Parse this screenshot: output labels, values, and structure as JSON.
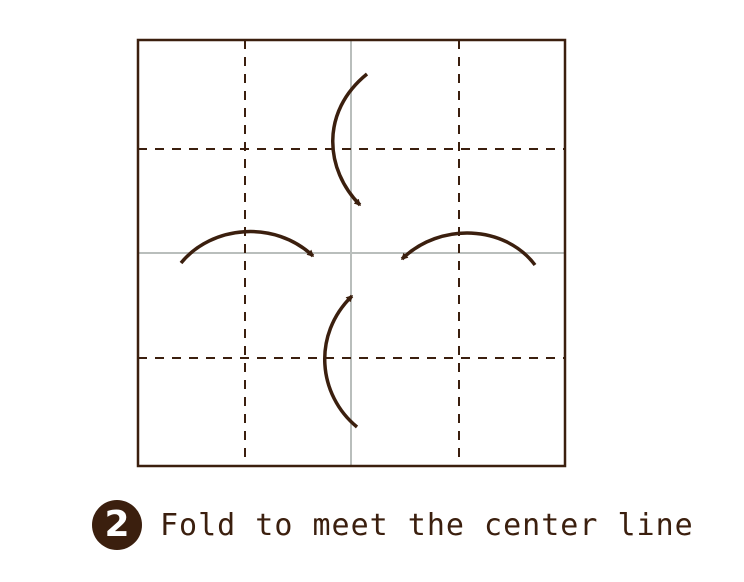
{
  "step": {
    "number": "2",
    "instruction": "Fold to meet the center line"
  },
  "colors": {
    "ink": "#3b1f0e",
    "center_crease": "#b9bebc",
    "background": "#ffffff"
  }
}
